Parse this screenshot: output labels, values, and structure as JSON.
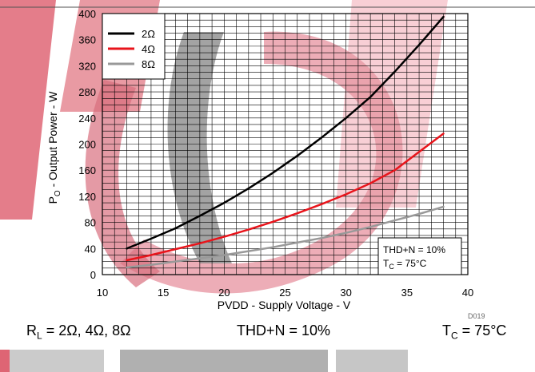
{
  "chart_data": {
    "type": "line",
    "title": "",
    "xlabel": "PVDD - Supply Voltage - V",
    "ylabel_main": "P",
    "ylabel_sub": "O",
    "ylabel_rest": " - Output Power - W",
    "xlim": [
      10,
      40
    ],
    "ylim": [
      0,
      400
    ],
    "x_ticks": [
      10,
      15,
      20,
      25,
      30,
      35,
      40
    ],
    "y_ticks": [
      0,
      40,
      80,
      120,
      160,
      200,
      240,
      280,
      320,
      360,
      400
    ],
    "grid": true,
    "legend_position": "top-left",
    "series": [
      {
        "name": "2Ω",
        "color": "#000000",
        "x": [
          12,
          14,
          16,
          18,
          20,
          22,
          24,
          26,
          28,
          30,
          32,
          34,
          36,
          38
        ],
        "y": [
          40,
          55,
          71,
          90,
          110,
          132,
          156,
          182,
          210,
          240,
          272,
          311,
          352,
          395
        ]
      },
      {
        "name": "4Ω",
        "color": "#e8141b",
        "x": [
          12,
          14,
          16,
          18,
          20,
          22,
          24,
          26,
          28,
          30,
          32,
          34,
          36,
          38
        ],
        "y": [
          22,
          30,
          39,
          48,
          58,
          69,
          81,
          94,
          108,
          123,
          140,
          160,
          188,
          216
        ]
      },
      {
        "name": "8Ω",
        "color": "#999999",
        "x": [
          12,
          14,
          16,
          18,
          20,
          22,
          24,
          26,
          28,
          30,
          32,
          34,
          36,
          38
        ],
        "y": [
          11,
          15,
          20,
          25,
          30,
          36,
          42,
          49,
          56,
          64,
          73,
          83,
          93,
          104
        ]
      }
    ],
    "annotation": {
      "line1": "THD+N = 10%",
      "line2_main": "T",
      "line2_sub": "C",
      "line2_rest": " = 75°C"
    },
    "figure_id": "D019"
  },
  "captions": {
    "left_main": "R",
    "left_sub": "L",
    "left_rest": " = 2Ω, 4Ω, 8Ω",
    "center": "THD+N = 10%",
    "right_main": "T",
    "right_sub": "C",
    "right_rest": " = 75°C"
  },
  "watermark_colors": {
    "red": "#d93a4c",
    "gray": "#7a7a7a"
  }
}
